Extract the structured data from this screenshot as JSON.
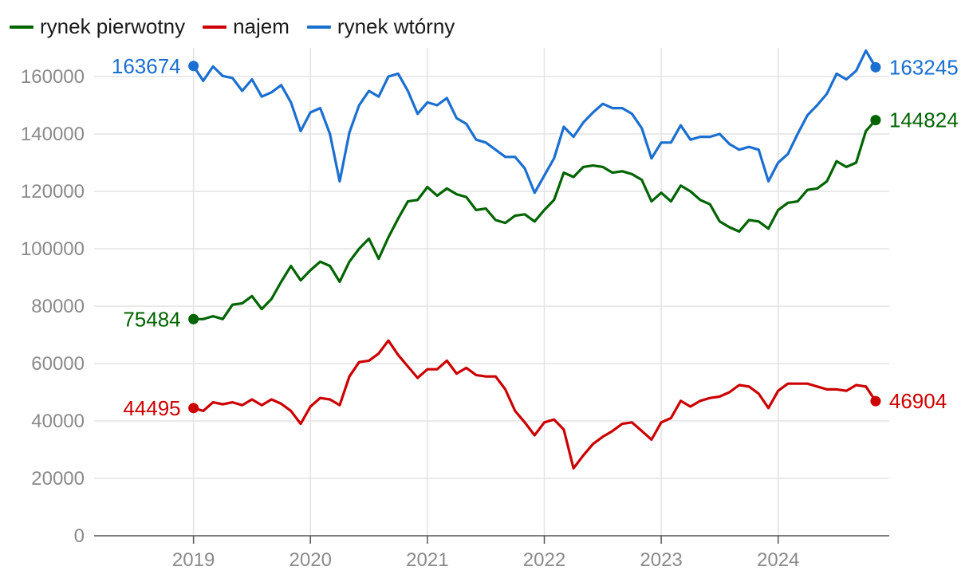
{
  "legend": [
    {
      "label": "rynek pierwotny",
      "color": "#006400"
    },
    {
      "label": "najem",
      "color": "#cc0000"
    },
    {
      "label": "rynek wtórny",
      "color": "#1a6fd0"
    }
  ],
  "chart_data": {
    "type": "line",
    "title": "",
    "xlabel": "",
    "ylabel": "",
    "ylim": [
      0,
      170000
    ],
    "xlim": [
      2018.15,
      2024.95
    ],
    "grid": true,
    "legend_position": "top-left",
    "y_ticks": [
      "0",
      "20000",
      "40000",
      "60000",
      "80000",
      "100000",
      "120000",
      "140000",
      "160000"
    ],
    "y_tick_values": [
      0,
      20000,
      40000,
      60000,
      80000,
      100000,
      120000,
      140000,
      160000
    ],
    "x_ticks": [
      "2019",
      "2020",
      "2021",
      "2022",
      "2023",
      "2024"
    ],
    "x_tick_values": [
      2019,
      2020,
      2021,
      2022,
      2023,
      2024
    ],
    "x_start": 2019,
    "x_step_months": 1,
    "series": [
      {
        "name": "rynek wtórny",
        "color": "#1a6fd0",
        "start_label": "163674",
        "end_label": "163245",
        "values": [
          163674,
          158500,
          163500,
          160200,
          159500,
          155000,
          159000,
          153000,
          154500,
          157000,
          151000,
          141000,
          147500,
          149000,
          140000,
          123500,
          140500,
          150000,
          155000,
          153000,
          160000,
          161000,
          155000,
          147000,
          151000,
          150000,
          152500,
          145500,
          143500,
          138000,
          137000,
          134500,
          132000,
          132000,
          128000,
          119500,
          125500,
          131500,
          142500,
          139000,
          144000,
          147500,
          150500,
          149000,
          149000,
          147000,
          142000,
          131500,
          137000,
          137000,
          143000,
          138000,
          139000,
          139000,
          140000,
          136500,
          134500,
          135500,
          134500,
          123500,
          130000,
          133000,
          140000,
          146500,
          150000,
          154000,
          161000,
          159000,
          162000,
          169000,
          163245
        ]
      },
      {
        "name": "rynek pierwotny",
        "color": "#006400",
        "start_label": "75484",
        "end_label": "144824",
        "values": [
          75484,
          75500,
          76500,
          75500,
          80500,
          81000,
          83500,
          79000,
          82500,
          88500,
          94000,
          89000,
          92500,
          95500,
          94000,
          88500,
          95500,
          100000,
          103500,
          96500,
          104000,
          110500,
          116500,
          117000,
          121500,
          118500,
          121000,
          119000,
          118000,
          113500,
          114000,
          110000,
          109000,
          111500,
          112000,
          109500,
          113500,
          117000,
          126500,
          125000,
          128500,
          129000,
          128500,
          126500,
          127000,
          126000,
          124000,
          116500,
          119500,
          116500,
          122000,
          120000,
          117000,
          115500,
          109500,
          107500,
          106000,
          110000,
          109500,
          107000,
          113500,
          116000,
          116500,
          120500,
          121000,
          123500,
          130500,
          128500,
          130000,
          141000,
          144824
        ]
      },
      {
        "name": "najem",
        "color": "#cc0000",
        "start_label": "44495",
        "end_label": "46904",
        "values": [
          44495,
          43500,
          46500,
          45800,
          46500,
          45500,
          47500,
          45500,
          47500,
          46000,
          43500,
          39000,
          45000,
          48000,
          47500,
          45500,
          55500,
          60500,
          61000,
          63500,
          68000,
          63000,
          59000,
          55000,
          58000,
          58000,
          61000,
          56500,
          58500,
          56000,
          55500,
          55500,
          51000,
          43500,
          39500,
          35000,
          39500,
          40500,
          37000,
          23500,
          28000,
          32000,
          34500,
          36500,
          39000,
          39500,
          36500,
          33500,
          39500,
          41000,
          47000,
          45000,
          47000,
          48000,
          48500,
          50000,
          52500,
          52000,
          49500,
          44500,
          50500,
          53000,
          53000,
          53000,
          52000,
          51000,
          51000,
          50500,
          52500,
          52000,
          46904
        ]
      }
    ]
  }
}
